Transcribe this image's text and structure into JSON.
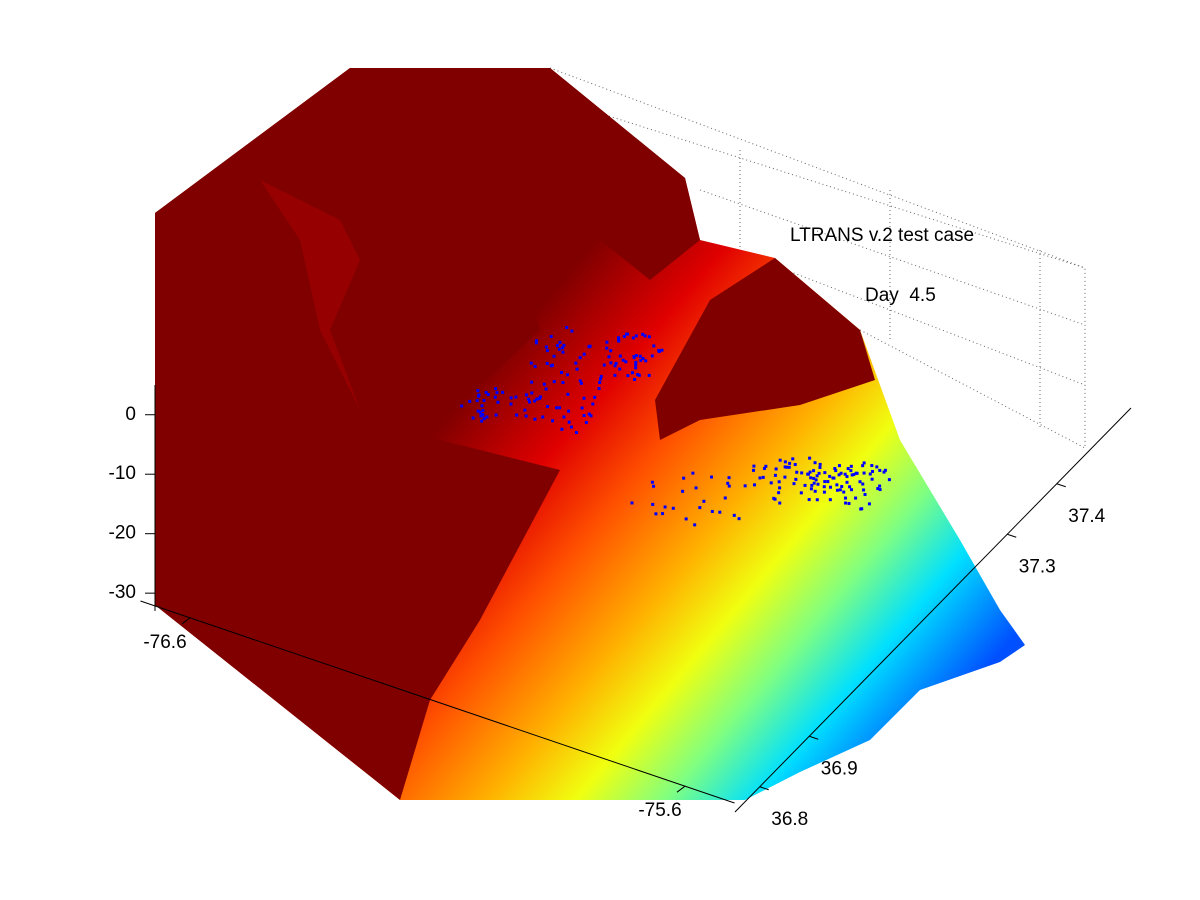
{
  "chart_data": {
    "type": "surface3d",
    "annotations": [
      "LTRANS v.2 test case",
      "Day  4.5"
    ],
    "xlim": [
      -76.7,
      -75.5
    ],
    "xticks": [
      -76.6,
      -75.6
    ],
    "ylim": [
      36.75,
      37.55
    ],
    "yticks": [
      36.8,
      36.9,
      37.3,
      37.4
    ],
    "zlim": [
      -33,
      5
    ],
    "zticks": [
      0,
      -10,
      -20,
      -30
    ]
  }
}
